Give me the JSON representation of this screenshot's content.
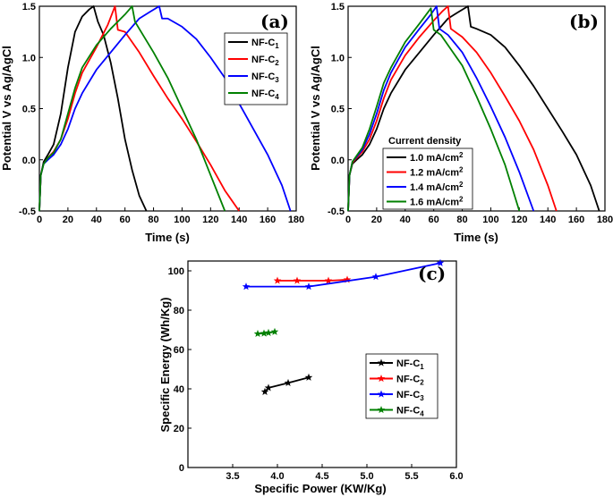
{
  "chart_data": [
    {
      "id": "a",
      "type": "line",
      "panel_label": "(a)",
      "xlabel": "Time (s)",
      "ylabel": "Potential V vs Ag/AgCl",
      "xlim": [
        0,
        180
      ],
      "ylim": [
        -0.5,
        1.5
      ],
      "xticks": [
        "0",
        "20",
        "40",
        "60",
        "80",
        "100",
        "120",
        "140",
        "160",
        "180"
      ],
      "yticks": [
        "-0.5",
        "0.0",
        "0.5",
        "1.0",
        "1.5"
      ],
      "legend_position": "top-right",
      "series": [
        {
          "name": "NF-C",
          "sub": "1",
          "color": "#000000",
          "x": [
            0,
            1,
            3,
            6,
            10,
            15,
            20,
            25,
            30,
            35,
            38,
            40,
            41,
            45,
            50,
            55,
            60,
            65,
            70,
            75
          ],
          "y": [
            -0.5,
            -0.15,
            -0.02,
            0.05,
            0.15,
            0.45,
            0.9,
            1.25,
            1.4,
            1.47,
            1.5,
            1.4,
            1.35,
            1.22,
            0.95,
            0.6,
            0.2,
            -0.1,
            -0.35,
            -0.5
          ]
        },
        {
          "name": "NF-C",
          "sub": "2",
          "color": "#ff0000",
          "x": [
            0,
            1,
            3,
            6,
            10,
            15,
            20,
            25,
            30,
            40,
            48,
            53,
            55,
            60,
            70,
            80,
            90,
            100,
            110,
            120,
            130,
            140
          ],
          "y": [
            -0.5,
            -0.15,
            -0.04,
            0.02,
            0.08,
            0.2,
            0.4,
            0.65,
            0.85,
            1.1,
            1.32,
            1.5,
            1.27,
            1.25,
            1.05,
            0.82,
            0.6,
            0.4,
            0.18,
            -0.05,
            -0.3,
            -0.5
          ]
        },
        {
          "name": "NF-C",
          "sub": "3",
          "color": "#0000ff",
          "x": [
            0,
            1,
            3,
            6,
            10,
            15,
            20,
            25,
            30,
            40,
            50,
            60,
            70,
            78,
            84,
            86,
            90,
            100,
            110,
            120,
            130,
            140,
            150,
            160,
            170,
            176
          ],
          "y": [
            -0.5,
            -0.15,
            -0.04,
            0.0,
            0.05,
            0.15,
            0.3,
            0.5,
            0.65,
            0.88,
            1.05,
            1.22,
            1.38,
            1.45,
            1.5,
            1.38,
            1.38,
            1.3,
            1.18,
            1.0,
            0.8,
            0.55,
            0.3,
            0.05,
            -0.25,
            -0.5
          ]
        },
        {
          "name": "NF-C",
          "sub": "4",
          "color": "#008000",
          "x": [
            0,
            1,
            3,
            6,
            10,
            15,
            20,
            25,
            30,
            40,
            50,
            60,
            65,
            67,
            70,
            80,
            90,
            100,
            110,
            120,
            130
          ],
          "y": [
            -0.5,
            -0.15,
            -0.04,
            0.02,
            0.07,
            0.2,
            0.45,
            0.7,
            0.9,
            1.12,
            1.28,
            1.42,
            1.5,
            1.35,
            1.28,
            1.05,
            0.8,
            0.5,
            0.2,
            -0.15,
            -0.5
          ]
        }
      ]
    },
    {
      "id": "b",
      "type": "line",
      "panel_label": "(b)",
      "xlabel": "Time (s)",
      "ylabel": "Potential V vs Ag/AgCl",
      "xlim": [
        0,
        180
      ],
      "ylim": [
        -0.5,
        1.5
      ],
      "xticks": [
        "0",
        "20",
        "40",
        "60",
        "80",
        "100",
        "120",
        "140",
        "160",
        "180"
      ],
      "yticks": [
        "-0.5",
        "0.0",
        "0.5",
        "1.0",
        "1.5"
      ],
      "legend_title": "Current density",
      "legend_position": "bottom-right",
      "series": [
        {
          "name": "1.0 mA/cm",
          "sup": "2",
          "color": "#000000",
          "x": [
            0,
            1,
            3,
            6,
            10,
            15,
            20,
            25,
            30,
            40,
            50,
            60,
            70,
            78,
            84,
            86,
            90,
            100,
            110,
            120,
            130,
            140,
            150,
            160,
            170,
            176
          ],
          "y": [
            -0.5,
            -0.15,
            -0.04,
            0.0,
            0.05,
            0.15,
            0.3,
            0.5,
            0.65,
            0.88,
            1.05,
            1.22,
            1.38,
            1.45,
            1.5,
            1.3,
            1.28,
            1.22,
            1.1,
            0.92,
            0.72,
            0.5,
            0.28,
            0.05,
            -0.25,
            -0.5
          ]
        },
        {
          "name": "1.2 mA/cm",
          "sup": "2",
          "color": "#ff0000",
          "x": [
            0,
            1,
            3,
            6,
            10,
            15,
            20,
            25,
            30,
            40,
            50,
            60,
            66,
            70,
            72,
            80,
            90,
            100,
            110,
            120,
            130,
            140,
            146
          ],
          "y": [
            -0.5,
            -0.15,
            -0.03,
            0.02,
            0.08,
            0.2,
            0.38,
            0.6,
            0.78,
            1.02,
            1.2,
            1.36,
            1.45,
            1.5,
            1.28,
            1.2,
            1.05,
            0.85,
            0.62,
            0.38,
            0.1,
            -0.25,
            -0.5
          ]
        },
        {
          "name": "1.4 mA/cm",
          "sup": "2",
          "color": "#0000ff",
          "x": [
            0,
            1,
            3,
            6,
            10,
            15,
            20,
            25,
            30,
            40,
            50,
            58,
            62,
            64,
            70,
            80,
            90,
            100,
            110,
            120,
            130
          ],
          "y": [
            -0.5,
            -0.15,
            -0.02,
            0.03,
            0.1,
            0.25,
            0.45,
            0.68,
            0.85,
            1.1,
            1.28,
            1.42,
            1.5,
            1.28,
            1.22,
            1.05,
            0.8,
            0.52,
            0.22,
            -0.12,
            -0.5
          ]
        },
        {
          "name": "1.6 mA/cm",
          "sup": "2",
          "color": "#008000",
          "x": [
            0,
            1,
            3,
            6,
            10,
            15,
            20,
            25,
            30,
            40,
            50,
            58,
            60,
            65,
            70,
            80,
            90,
            100,
            110,
            120
          ],
          "y": [
            -0.5,
            -0.15,
            -0.02,
            0.04,
            0.12,
            0.3,
            0.52,
            0.75,
            0.9,
            1.15,
            1.33,
            1.48,
            1.27,
            1.22,
            1.12,
            0.92,
            0.62,
            0.3,
            -0.05,
            -0.5
          ]
        }
      ]
    },
    {
      "id": "c",
      "type": "line",
      "panel_label": "(c)",
      "xlabel": "Specific Power (KW/Kg)",
      "ylabel": "Specific Energy (Wh/Kg)",
      "xlim": [
        3.0,
        6.0
      ],
      "ylim": [
        0,
        105
      ],
      "xticks": [
        "3.5",
        "4.0",
        "4.5",
        "5.0",
        "5.5",
        "6.0"
      ],
      "yticks": [
        "0",
        "20",
        "40",
        "60",
        "80",
        "100"
      ],
      "legend_position": "right",
      "series": [
        {
          "name": "NF-C",
          "sub": "1",
          "color": "#000000",
          "marker": "star",
          "x": [
            3.86,
            3.9,
            4.12,
            4.35
          ],
          "y": [
            38.5,
            40.5,
            43,
            45.8
          ]
        },
        {
          "name": "NF-C",
          "sub": "2",
          "color": "#ff0000",
          "marker": "star",
          "x": [
            4.0,
            4.22,
            4.57,
            4.78
          ],
          "y": [
            95,
            95,
            95,
            95.5
          ]
        },
        {
          "name": "NF-C",
          "sub": "3",
          "color": "#0000ff",
          "marker": "star",
          "x": [
            3.65,
            4.35,
            5.1,
            5.82
          ],
          "y": [
            92,
            92,
            97,
            104
          ]
        },
        {
          "name": "NF-C",
          "sub": "4",
          "color": "#008000",
          "marker": "star",
          "x": [
            3.78,
            3.85,
            3.9,
            3.97
          ],
          "y": [
            68,
            68.2,
            68.5,
            69
          ]
        }
      ]
    }
  ]
}
